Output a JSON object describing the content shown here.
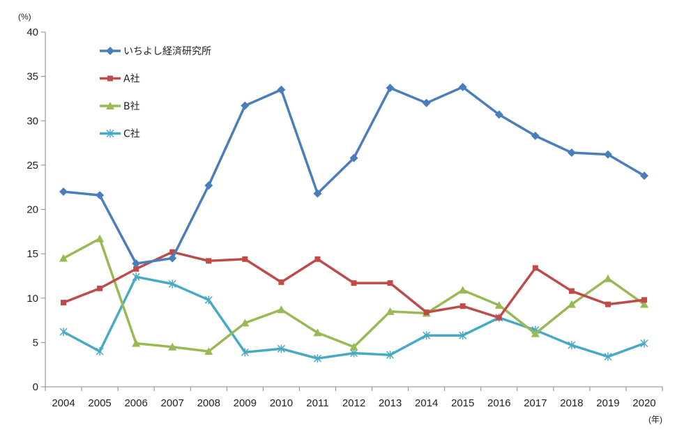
{
  "chart_data": {
    "type": "line",
    "y_unit": "(%)",
    "x_unit": "(年)",
    "ylim": [
      0,
      40
    ],
    "y_ticks": [
      0,
      5,
      10,
      15,
      20,
      25,
      30,
      35,
      40
    ],
    "grid": false,
    "legend_position": "top-left",
    "categories": [
      "2004",
      "2005",
      "2006",
      "2007",
      "2008",
      "2009",
      "2010",
      "2011",
      "2012",
      "2013",
      "2014",
      "2015",
      "2016",
      "2017",
      "2018",
      "2019",
      "2020"
    ],
    "series": [
      {
        "name": "いちよし経済研究所",
        "color": "#4a7ebb",
        "marker": "diamond",
        "values": [
          22.0,
          21.6,
          13.9,
          14.5,
          22.7,
          31.7,
          33.5,
          21.8,
          25.8,
          33.7,
          32.0,
          33.8,
          30.7,
          28.3,
          26.4,
          26.2,
          23.8
        ]
      },
      {
        "name": "A社",
        "color": "#be4b48",
        "marker": "square",
        "values": [
          9.5,
          11.1,
          13.3,
          15.2,
          14.2,
          14.4,
          11.8,
          14.4,
          11.7,
          11.7,
          8.4,
          9.1,
          7.8,
          13.4,
          10.8,
          9.3,
          9.8
        ]
      },
      {
        "name": "B社",
        "color": "#98b954",
        "marker": "triangle",
        "values": [
          14.5,
          16.7,
          4.9,
          4.5,
          4.0,
          7.2,
          8.7,
          6.1,
          4.5,
          8.5,
          8.3,
          10.9,
          9.2,
          6.0,
          9.3,
          12.2,
          9.3
        ]
      },
      {
        "name": "C社",
        "color": "#46aac5",
        "marker": "star",
        "values": [
          6.2,
          4.0,
          12.4,
          11.6,
          9.8,
          3.9,
          4.3,
          3.2,
          3.8,
          3.6,
          5.8,
          5.8,
          7.8,
          6.4,
          4.7,
          3.4,
          4.9
        ]
      }
    ]
  }
}
